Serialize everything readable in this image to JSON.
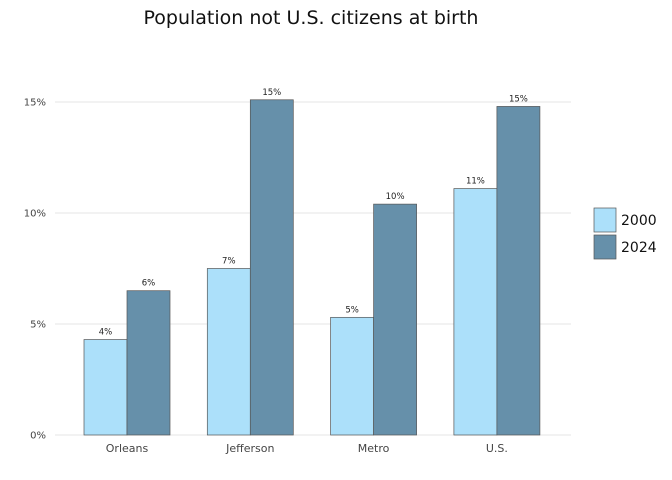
{
  "chart_data": {
    "type": "bar",
    "title": "Population not U.S. citizens at birth",
    "categories": [
      "Orleans",
      "Jefferson",
      "Metro",
      "U.S."
    ],
    "series": [
      {
        "name": "2000",
        "color": "#ace0fa",
        "values": [
          0.043,
          0.075,
          0.053,
          0.111
        ],
        "labels": [
          "4%",
          "7%",
          "5%",
          "11%"
        ]
      },
      {
        "name": "2024",
        "color": "#6690aa",
        "values": [
          0.065,
          0.151,
          0.104,
          0.148
        ],
        "labels": [
          "6%",
          "15%",
          "10%",
          "15%"
        ]
      }
    ],
    "ylim": [
      0,
      0.15
    ],
    "yticks": [
      0,
      0.05,
      0.1,
      0.15
    ],
    "ytick_labels": [
      "0%",
      "5%",
      "10%",
      "15%"
    ],
    "xlabel": "",
    "ylabel": "",
    "grid": true,
    "legend": "right"
  }
}
